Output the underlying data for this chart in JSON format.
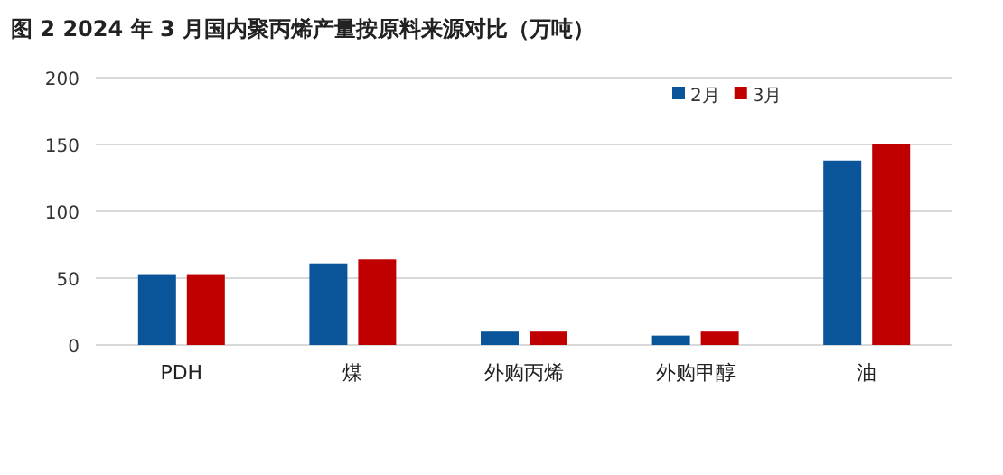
{
  "chart_data": {
    "type": "bar",
    "title": "图 2 2024 年 3 月国内聚丙烯产量按原料来源对比（万吨）",
    "categories": [
      "PDH",
      "煤",
      "外购丙烯",
      "外购甲醇",
      "油"
    ],
    "series": [
      {
        "name": "2月",
        "color": "#0a559a",
        "values": [
          53,
          61,
          10,
          7,
          138
        ]
      },
      {
        "name": "3月",
        "color": "#c00000",
        "values": [
          53,
          64,
          10,
          10,
          150
        ]
      }
    ],
    "ylim": [
      0,
      200
    ],
    "yticks": [
      0,
      50,
      100,
      150,
      200
    ],
    "grid": "y",
    "legend": "top right"
  }
}
